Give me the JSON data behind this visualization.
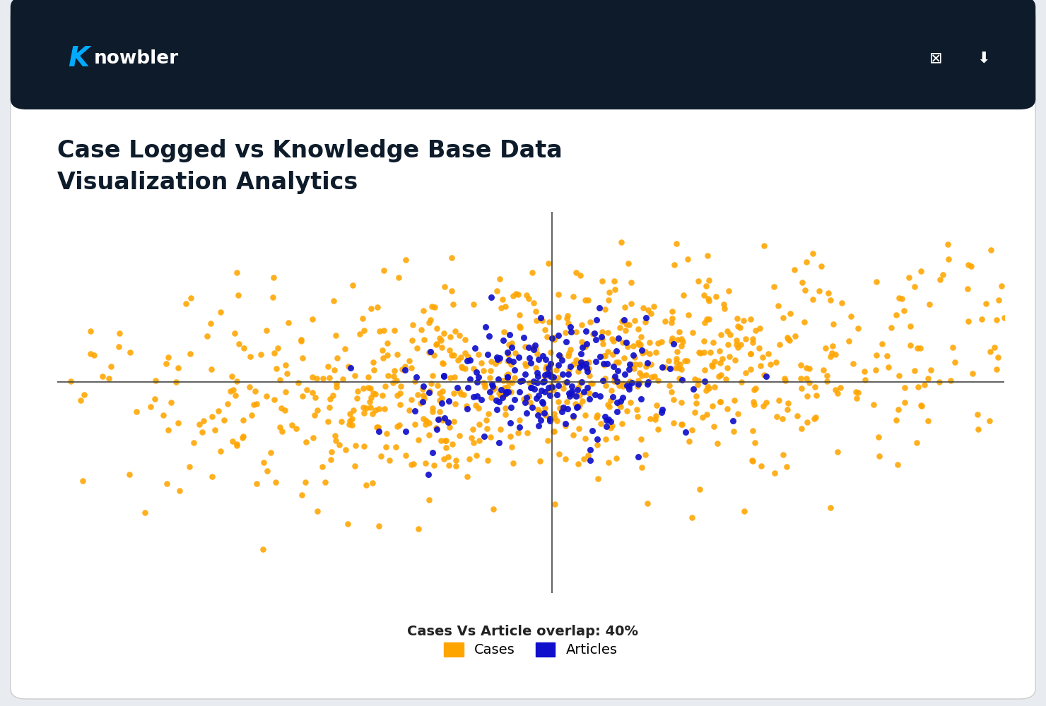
{
  "title_line1": "Case Logged vs Knowledge Base Data",
  "title_line2": "Visualization Analytics",
  "overlap_text": "Cases Vs Article overlap: 40%",
  "cases_label": "Cases",
  "articles_label": "Articles",
  "cases_color": "#FFA500",
  "articles_color": "#1010CC",
  "header_bg": "#0D1B2A",
  "card_bg": "#FFFFFF",
  "outer_bg": "#E8EBF0",
  "n_cases": 900,
  "n_articles": 220,
  "seed": 42,
  "title_fontsize": 24,
  "overlap_fontsize": 14,
  "legend_fontsize": 14,
  "cases_marker_size": 38,
  "articles_marker_size": 42,
  "xlim": [
    -4.5,
    4.5
  ],
  "ylim": [
    -2.8,
    2.8
  ],
  "grid_color": "#CCCCCC",
  "axis_line_color": "#444444",
  "cases_x_mean": 0.3,
  "cases_y_mean": 0.3,
  "cases_x_std": 2.2,
  "cases_y_std": 0.75,
  "articles_x_mean": 0.2,
  "articles_y_mean": 0.3,
  "articles_x_std": 0.65,
  "articles_y_std": 0.45,
  "hline_y": 0.3,
  "vline_x": 0.2
}
